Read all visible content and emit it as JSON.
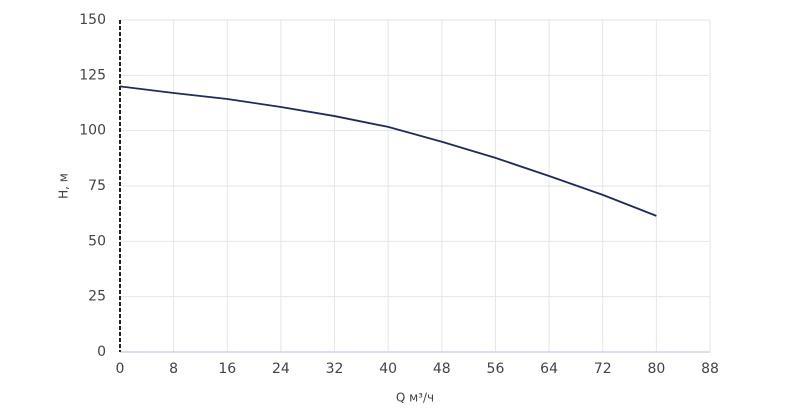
{
  "chart_data": {
    "type": "line",
    "x_label": "Q м³/ч",
    "y_label": "H, м",
    "x": [
      0,
      8,
      16,
      24,
      32,
      40,
      48,
      56,
      64,
      72,
      80
    ],
    "series": [
      {
        "color": "#1e2b5c",
        "values": [
          120,
          117,
          114.3,
          110.7,
          106.6,
          101.7,
          95,
          87.7,
          79.5,
          71,
          61.5
        ]
      }
    ],
    "xlim": [
      0,
      88
    ],
    "xticks": [
      0,
      8,
      16,
      24,
      32,
      40,
      48,
      56,
      64,
      72,
      80,
      88
    ],
    "ylim": [
      0,
      150
    ],
    "yticks": [
      0,
      25,
      50,
      75,
      100,
      125,
      150
    ],
    "grid": true
  }
}
